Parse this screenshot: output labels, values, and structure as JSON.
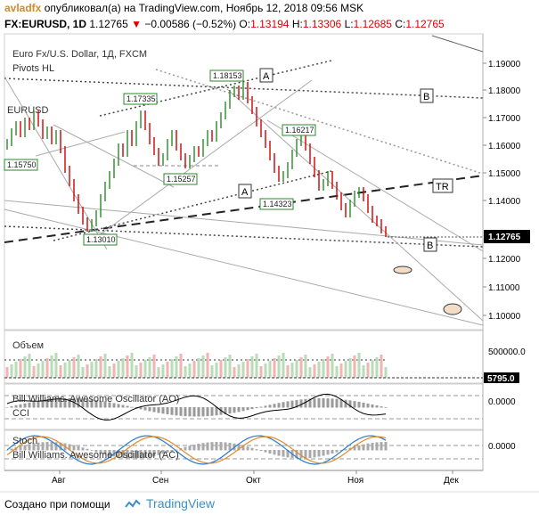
{
  "header": {
    "user": "avladfx",
    "published": "опубликовал(а) на TradingView.com, Ноябрь 12, 2018 09:56 MSK",
    "symbol": "FX:EURUSD, 1D",
    "price": "1.12765",
    "change": "▼",
    "change_value": "−0.00586 (−0.52%)",
    "o_label": "O:",
    "o_value": "1.13194",
    "h_label": "H:",
    "h_value": "1.13306",
    "l_label": "L:",
    "l_value": "1.12685",
    "c_label": "C:",
    "c_value": "1.12765"
  },
  "legend": {
    "instrument": "Euro Fx/U.S. Dollar, 1Д, FXCM",
    "pivots": "Pivots HL",
    "ticker": "EURUSD"
  },
  "price_axis": {
    "ticks": [
      "1.19000",
      "1.18000",
      "1.17000",
      "1.16000",
      "1.15000",
      "1.14000",
      "1.13000",
      "1.12000",
      "1.11000",
      "1.10000"
    ],
    "current": "1.12765"
  },
  "pivot_labels": [
    "1.18153",
    "1.17335",
    "1.16217",
    "1.15750",
    "1.15257",
    "1.14323",
    "1.13010"
  ],
  "markers": {
    "A": "A",
    "B": "B",
    "TR": "TR"
  },
  "volume": {
    "title": "Объем",
    "axis": "500000.0",
    "current": "5795.0"
  },
  "ao_panel": {
    "title": "Bill Williams. Awesome Oscillator (AO)",
    "sub": "CCI",
    "axis": "0.0000"
  },
  "ac_panel": {
    "title": "Stoch",
    "sub": "Bill Williams. Awesome Oscillator (AC)",
    "axis": "0.0000"
  },
  "time_axis": {
    "labels": [
      "Авг",
      "Сен",
      "Окт",
      "Ноя",
      "Дек"
    ]
  },
  "footer": {
    "text": "Создано при помощи",
    "brand": "TradingView"
  },
  "colors": {
    "up": "#2a8a2a",
    "down": "#d00000",
    "accent": "#3a8fc8"
  }
}
